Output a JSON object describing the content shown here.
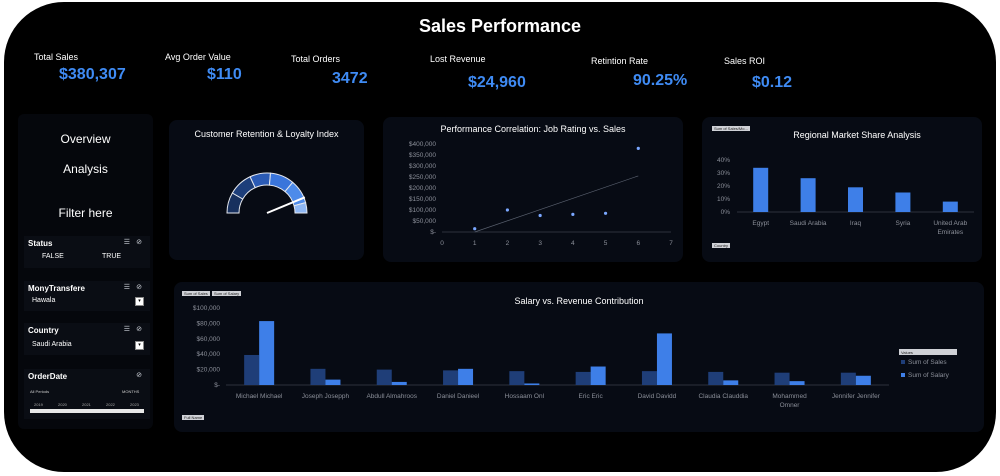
{
  "title": "Sales Performance",
  "kpis": [
    {
      "label": "Total Sales",
      "value": "$380,307"
    },
    {
      "label": "Avg Order Value",
      "value": "$110"
    },
    {
      "label": "Total Orders",
      "value": "3472"
    },
    {
      "label": "Lost Revenue",
      "value": "$24,960"
    },
    {
      "label": "Retintion Rate",
      "value": "90.25%"
    },
    {
      "label": "Sales ROI",
      "value": "$0.12"
    }
  ],
  "sidebar": {
    "overview": "Overview",
    "analysis": "Analysis",
    "filter": "Filter here",
    "slicers": {
      "status": {
        "title": "Status",
        "options": [
          "FALSE",
          "TRUE"
        ]
      },
      "money": {
        "title": "MonyTransfere",
        "selected": "Hawala"
      },
      "country": {
        "title": "Country",
        "selected": "Saudi Arabia"
      },
      "orderdate": {
        "title": "OrderDate",
        "periods": "All Periods",
        "unit": "MONTHS",
        "years": [
          "2019",
          "2020",
          "2021",
          "2022",
          "2023"
        ]
      }
    }
  },
  "gauge": {
    "title": "Customer Retention & Loyalty Index",
    "value_pct": 90.25
  },
  "colors": {
    "accent": "#3f8bf4",
    "bar_dark": "#1f3e78",
    "bar_light": "#3e7fe8"
  },
  "chart_data": [
    {
      "type": "scatter",
      "title": "Performance Correlation: Job Rating vs. Sales",
      "x_ticks": [
        "0",
        "1",
        "2",
        "3",
        "4",
        "5",
        "6",
        "7"
      ],
      "y_ticks": [
        "$-",
        "$50,000",
        "$100,000",
        "$150,000",
        "$200,000",
        "$250,000",
        "$300,000",
        "$350,000",
        "$400,000"
      ],
      "xlim": [
        0,
        7
      ],
      "ylim": [
        0,
        400000
      ],
      "points": [
        [
          1,
          15000
        ],
        [
          2,
          100000
        ],
        [
          3,
          75000
        ],
        [
          4,
          80000
        ],
        [
          5,
          85000
        ],
        [
          6,
          380000
        ]
      ],
      "trendline": [
        [
          1,
          0
        ],
        [
          6,
          255000
        ]
      ]
    },
    {
      "type": "bar",
      "title": "Regional Market Share Analysis",
      "filter_label": "Sum of Sales/Mo...",
      "field_button": "Country",
      "categories": [
        "Egypt",
        "Saudi Arabia",
        "Iraq",
        "Syria",
        "United Arab Emirates"
      ],
      "values": [
        34,
        26,
        19,
        15,
        8
      ],
      "y_ticks": [
        "0%",
        "10%",
        "20%",
        "30%",
        "40%"
      ],
      "ylim": [
        0,
        40
      ]
    },
    {
      "type": "bar",
      "title": "Salary vs. Revenue Contribution",
      "field_buttons": [
        "Sum of Sales",
        "Sum of Salary"
      ],
      "bottom_button": "Full Name",
      "categories": [
        "Michael Michael",
        "Joseph Josepph",
        "Abdull Almahroos",
        "Daniel Danieel",
        "Hossaam Onl",
        "Eric Eric",
        "David Davidd",
        "Claudia Clauddia",
        "Mohammed Omner",
        "Jennifer Jennifer"
      ],
      "y_ticks": [
        "$-",
        "$20,000",
        "$40,000",
        "$60,000",
        "$80,000",
        "$100,000"
      ],
      "ylim": [
        0,
        100000
      ],
      "legend_title": "Values",
      "series": [
        {
          "name": "Sum of Sales",
          "values": [
            39000,
            21000,
            20000,
            19000,
            18000,
            17000,
            18000,
            17000,
            16000,
            16000
          ]
        },
        {
          "name": "Sum of Salary",
          "values": [
            83000,
            7000,
            4000,
            21000,
            2000,
            24000,
            67000,
            6000,
            5000,
            12000
          ]
        }
      ]
    }
  ]
}
